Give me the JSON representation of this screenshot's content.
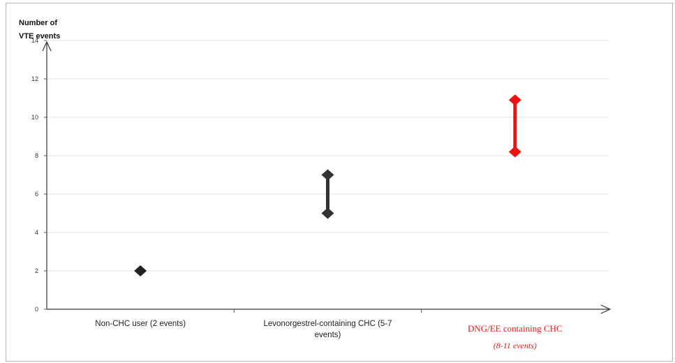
{
  "chart_data": {
    "type": "range",
    "ylabel": [
      "Number of",
      "VTE events"
    ],
    "ylim": [
      0,
      14
    ],
    "yticks": [
      0,
      2,
      4,
      6,
      8,
      10,
      12,
      14
    ],
    "yticklabels": [
      "0",
      "2",
      "4",
      "6",
      "8",
      "10",
      "12",
      "14"
    ],
    "grid": true,
    "categories": [
      {
        "label": [
          "Non-CHC user (2 events)"
        ],
        "low": 2,
        "high": 2,
        "color": "#222222",
        "label_color": "#222222",
        "style": "normal"
      },
      {
        "label": [
          "Levonorgestrel-containing CHC (5-7",
          "events)"
        ],
        "low": 5,
        "high": 7,
        "color": "#333333",
        "label_color": "#222222",
        "style": "normal"
      },
      {
        "label": [
          "DNG/EE containing CHC",
          "(8-11 events)"
        ],
        "low": 8.2,
        "high": 10.9,
        "color": "#ee1111",
        "label_color": "#e8191c",
        "style": "red"
      }
    ]
  }
}
